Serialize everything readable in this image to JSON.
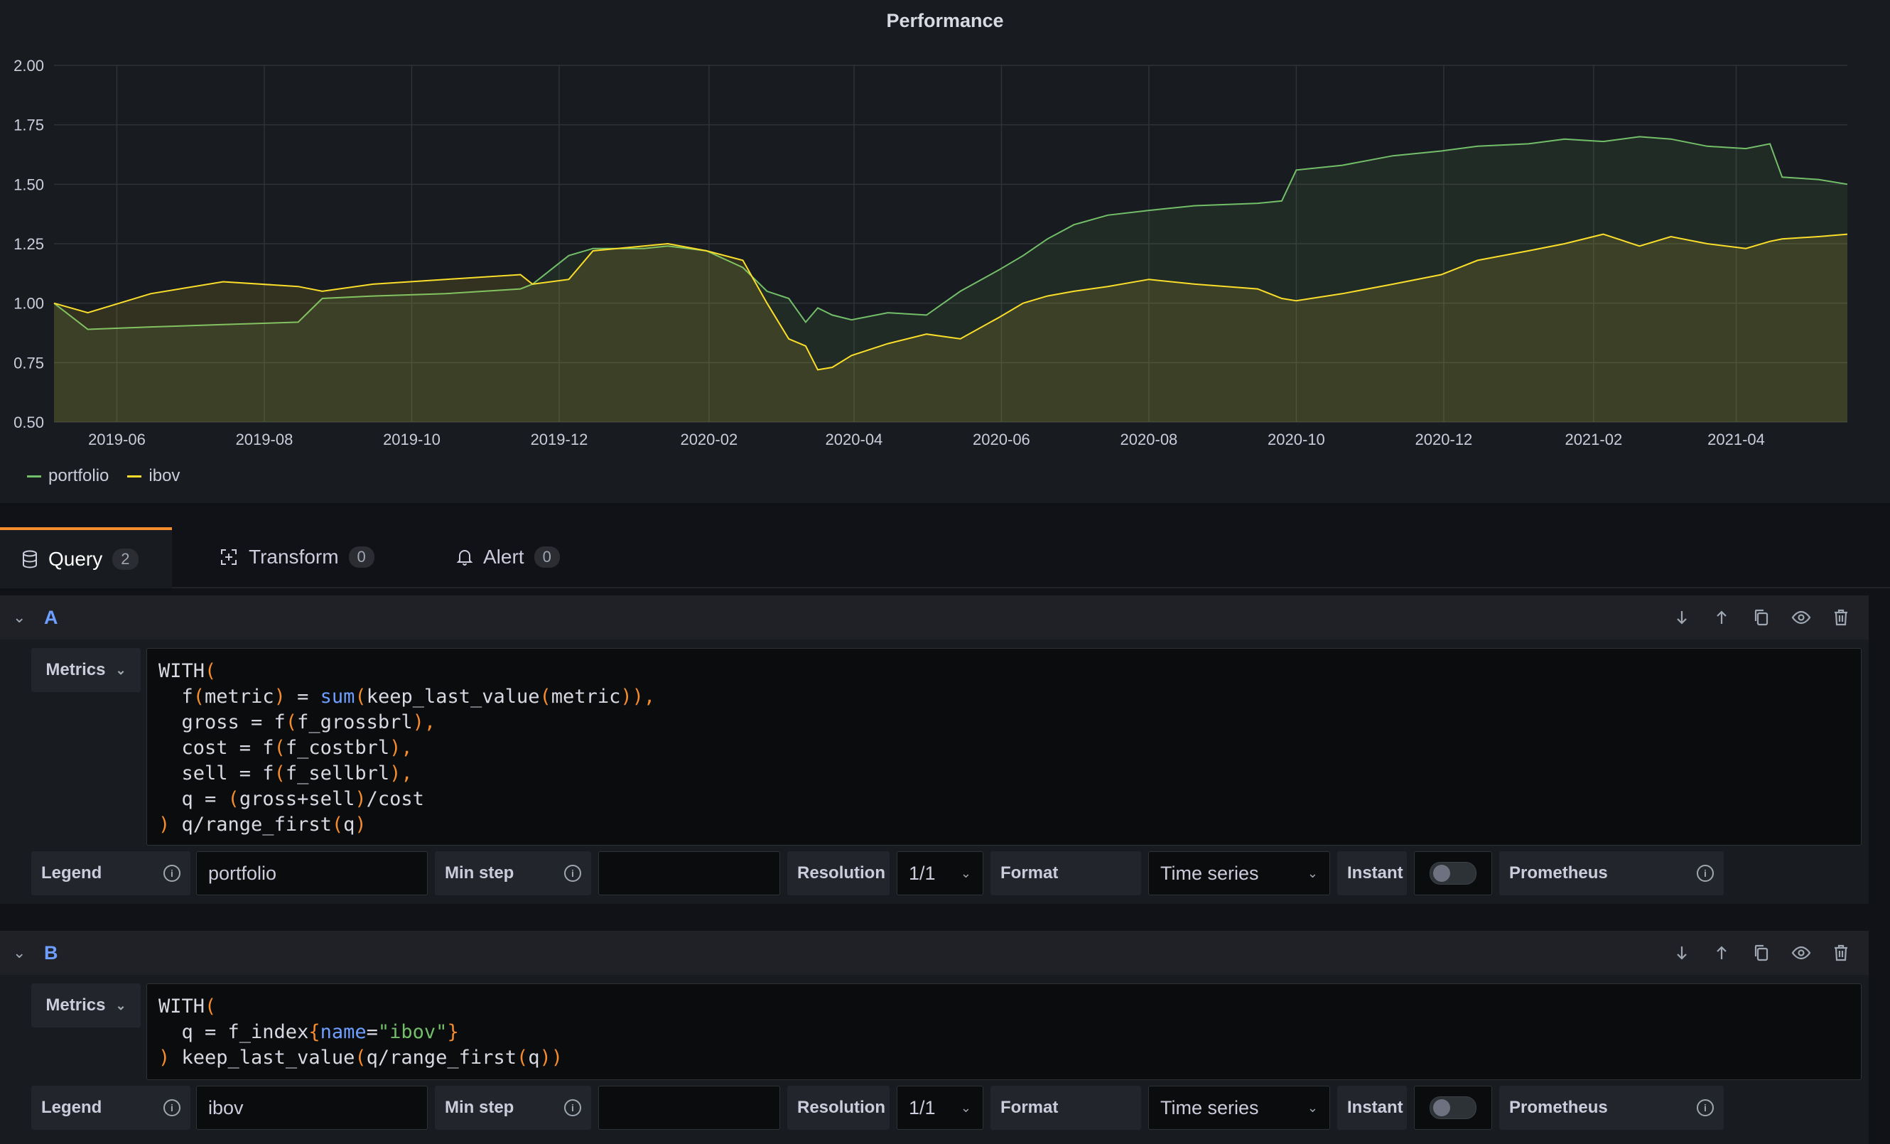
{
  "panel": {
    "title": "Performance"
  },
  "chart_data": {
    "type": "line",
    "title": "Performance",
    "yticks": [
      "0.50",
      "0.75",
      "1.00",
      "1.25",
      "1.50",
      "1.75",
      "2.00"
    ],
    "ylim": [
      0.5,
      2.0
    ],
    "xticks": [
      "2019-06",
      "2019-08",
      "2019-10",
      "2019-12",
      "2020-02",
      "2020-04",
      "2020-06",
      "2020-08",
      "2020-10",
      "2020-12",
      "2021-02",
      "2021-04"
    ],
    "x": [
      "2019-05-06",
      "2019-05-20",
      "2019-06-15",
      "2019-07-15",
      "2019-08-15",
      "2019-08-25",
      "2019-09-15",
      "2019-10-15",
      "2019-11-15",
      "2019-11-20",
      "2019-12-05",
      "2019-12-15",
      "2020-01-05",
      "2020-01-15",
      "2020-01-31",
      "2020-02-15",
      "2020-02-25",
      "2020-03-05",
      "2020-03-12",
      "2020-03-17",
      "2020-03-23",
      "2020-03-31",
      "2020-04-15",
      "2020-05-01",
      "2020-05-15",
      "2020-05-31",
      "2020-06-10",
      "2020-06-20",
      "2020-07-01",
      "2020-07-15",
      "2020-08-01",
      "2020-08-20",
      "2020-09-15",
      "2020-09-25",
      "2020-10-01",
      "2020-10-20",
      "2020-11-10",
      "2020-11-30",
      "2020-12-15",
      "2021-01-05",
      "2021-01-20",
      "2021-02-05",
      "2021-02-20",
      "2021-03-05",
      "2021-03-20",
      "2021-04-05",
      "2021-04-15",
      "2021-04-20",
      "2021-05-05",
      "2021-05-17"
    ],
    "series": [
      {
        "name": "portfolio",
        "color": "#73bf69",
        "values": [
          1.0,
          0.89,
          0.9,
          0.91,
          0.92,
          1.02,
          1.03,
          1.04,
          1.06,
          1.08,
          1.2,
          1.23,
          1.23,
          1.24,
          1.22,
          1.15,
          1.05,
          1.02,
          0.92,
          0.98,
          0.95,
          0.93,
          0.96,
          0.95,
          1.05,
          1.14,
          1.2,
          1.27,
          1.33,
          1.37,
          1.39,
          1.41,
          1.42,
          1.43,
          1.56,
          1.58,
          1.62,
          1.64,
          1.66,
          1.67,
          1.69,
          1.68,
          1.7,
          1.69,
          1.66,
          1.65,
          1.67,
          1.53,
          1.52,
          1.5
        ]
      },
      {
        "name": "ibov",
        "color": "#fade2a",
        "values": [
          1.0,
          0.96,
          1.04,
          1.09,
          1.07,
          1.05,
          1.08,
          1.1,
          1.12,
          1.08,
          1.1,
          1.22,
          1.24,
          1.25,
          1.22,
          1.18,
          1.0,
          0.85,
          0.82,
          0.72,
          0.73,
          0.78,
          0.83,
          0.87,
          0.85,
          0.94,
          1.0,
          1.03,
          1.05,
          1.07,
          1.1,
          1.08,
          1.06,
          1.02,
          1.01,
          1.04,
          1.08,
          1.12,
          1.18,
          1.22,
          1.25,
          1.29,
          1.24,
          1.28,
          1.25,
          1.23,
          1.26,
          1.27,
          1.28,
          1.29
        ]
      }
    ],
    "legend": "bottom-left",
    "grid": true
  },
  "tabs": [
    {
      "label": "Query",
      "count": "2"
    },
    {
      "label": "Transform",
      "count": "0"
    },
    {
      "label": "Alert",
      "count": "0"
    }
  ],
  "queries": [
    {
      "name": "A",
      "datasource_label": "Metrics",
      "code": [
        [
          [
            "WITH",
            ""
          ],
          [
            "(",
            "p"
          ]
        ],
        [
          [
            "  f",
            ""
          ],
          [
            "(",
            "p"
          ],
          [
            "metric",
            ""
          ],
          [
            ")",
            "p"
          ],
          [
            " = ",
            ""
          ],
          [
            "sum",
            "f"
          ],
          [
            "(",
            "p"
          ],
          [
            "keep_last_value",
            ""
          ],
          [
            "(",
            "p"
          ],
          [
            "metric",
            ""
          ],
          [
            "))",
            "p"
          ],
          [
            ",",
            "p"
          ]
        ],
        [
          [
            "  gross = f",
            ""
          ],
          [
            "(",
            "p"
          ],
          [
            "f_grossbrl",
            ""
          ],
          [
            ")",
            "p"
          ],
          [
            ",",
            "p"
          ]
        ],
        [
          [
            "  cost = f",
            ""
          ],
          [
            "(",
            "p"
          ],
          [
            "f_costbrl",
            ""
          ],
          [
            ")",
            "p"
          ],
          [
            ",",
            "p"
          ]
        ],
        [
          [
            "  sell = f",
            ""
          ],
          [
            "(",
            "p"
          ],
          [
            "f_sellbrl",
            ""
          ],
          [
            ")",
            "p"
          ],
          [
            ",",
            "p"
          ]
        ],
        [
          [
            "  q = ",
            ""
          ],
          [
            "(",
            "p"
          ],
          [
            "gross+sell",
            ""
          ],
          [
            ")",
            "p"
          ],
          [
            "/cost",
            ""
          ]
        ],
        [
          [
            ")",
            "p"
          ],
          [
            " q/range_first",
            ""
          ],
          [
            "(",
            "p"
          ],
          [
            "q",
            ""
          ],
          [
            ")",
            "p"
          ]
        ]
      ],
      "legend_label": "Legend",
      "legend_value": "portfolio",
      "min_step_label": "Min step",
      "min_step_value": "",
      "resolution_label": "Resolution",
      "resolution_value": "1/1",
      "format_label": "Format",
      "format_value": "Time series",
      "instant_label": "Instant",
      "instant_on": false,
      "prometheus_label": "Prometheus"
    },
    {
      "name": "B",
      "datasource_label": "Metrics",
      "code": [
        [
          [
            "WITH",
            ""
          ],
          [
            "(",
            "p"
          ]
        ],
        [
          [
            "  q = f_index",
            ""
          ],
          [
            "{",
            "p"
          ],
          [
            "name",
            "f"
          ],
          [
            "=",
            ""
          ],
          [
            "\"ibov\"",
            "s"
          ],
          [
            "}",
            "p"
          ]
        ],
        [
          [
            ")",
            "p"
          ],
          [
            " keep_last_value",
            ""
          ],
          [
            "(",
            "p"
          ],
          [
            "q/range_first",
            ""
          ],
          [
            "(",
            "p"
          ],
          [
            "q",
            ""
          ],
          [
            "))",
            "p"
          ]
        ]
      ],
      "legend_label": "Legend",
      "legend_value": "ibov",
      "min_step_label": "Min step",
      "min_step_value": "",
      "resolution_label": "Resolution",
      "resolution_value": "1/1",
      "format_label": "Format",
      "format_value": "Time series",
      "instant_label": "Instant",
      "instant_on": false,
      "prometheus_label": "Prometheus"
    }
  ]
}
